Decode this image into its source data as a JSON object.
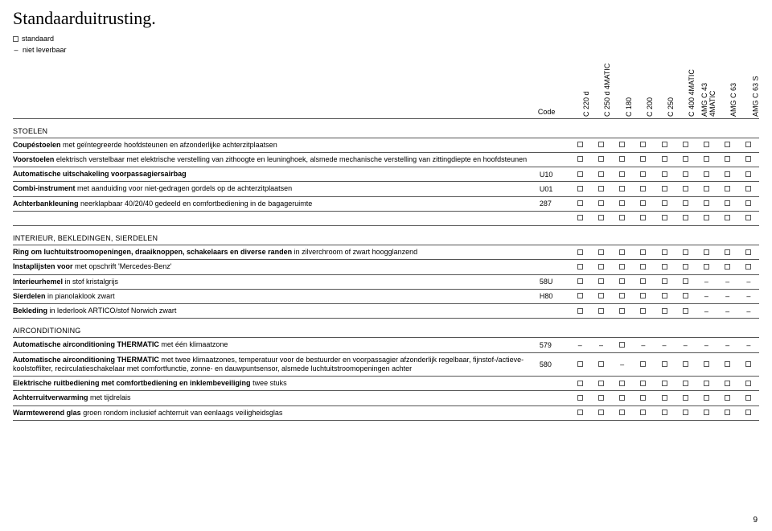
{
  "title": "Standaarduitrusting.",
  "legend": {
    "standard": "standaard",
    "notAvailable": "niet leverbaar"
  },
  "codeLabel": "Code",
  "columns": [
    "C 220 d",
    "C 250 d 4MATIC",
    "C 180",
    "C 200",
    "C 250",
    "C 400 4MATIC",
    "AMG C 43 4MATIC",
    "AMG C 63",
    "AMG C 63 S"
  ],
  "colWidths": {
    "desc": 598,
    "code": 36,
    "mark": 24
  },
  "marks": {
    "s": "□",
    "d": "–"
  },
  "pageNumber": "9",
  "sections": [
    {
      "heading": "STOELEN",
      "rows": [
        {
          "boldText": "Coupéstoelen",
          "regText": " met geïntegreerde hoofdsteunen en afzonderlijke achterzitplaatsen",
          "code": "",
          "marks": [
            "s",
            "s",
            "s",
            "s",
            "s",
            "s",
            "s",
            "s",
            "s"
          ]
        },
        {
          "boldText": "Voorstoelen",
          "regText": " elektrisch verstelbaar met elektrische verstelling van zithoogte en leuninghoek, alsmede mechanische verstelling van zittingdiepte en hoofdsteunen",
          "code": "",
          "marks": [
            "s",
            "s",
            "s",
            "s",
            "s",
            "s",
            "s",
            "s",
            "s"
          ]
        },
        {
          "boldText": "Automatische uitschakeling voorpassagiersairbag",
          "regText": "",
          "code": "U10",
          "marks": [
            "s",
            "s",
            "s",
            "s",
            "s",
            "s",
            "s",
            "s",
            "s"
          ]
        },
        {
          "boldText": "Combi-instrument",
          "regText": " met aanduiding voor niet-gedragen gordels op de achterzitplaatsen",
          "code": "U01",
          "marks": [
            "s",
            "s",
            "s",
            "s",
            "s",
            "s",
            "s",
            "s",
            "s"
          ]
        },
        {
          "boldText": "Achterbankleuning",
          "regText": " neerklapbaar 40/20/40 gedeeld en comfortbediening in de bagageruimte",
          "code": "287",
          "marks": [
            "s",
            "s",
            "s",
            "s",
            "s",
            "s",
            "s",
            "s",
            "s"
          ]
        },
        {
          "boldText": "",
          "regText": "",
          "code": "",
          "marks": [
            "s",
            "s",
            "s",
            "s",
            "s",
            "s",
            "s",
            "s",
            "s"
          ]
        }
      ]
    },
    {
      "heading": "INTERIEUR, BEKLEDINGEN, SIERDELEN",
      "rows": [
        {
          "boldText": "Ring om luchtuitstroomopeningen, draaiknoppen, schakelaars en diverse randen",
          "regText": " in zilverchroom of zwart hoogglanzend",
          "code": "",
          "marks": [
            "s",
            "s",
            "s",
            "s",
            "s",
            "s",
            "s",
            "s",
            "s"
          ]
        },
        {
          "boldText": "Instaplijsten voor",
          "regText": " met opschrift 'Mercedes-Benz'",
          "code": "",
          "marks": [
            "s",
            "s",
            "s",
            "s",
            "s",
            "s",
            "s",
            "s",
            "s"
          ]
        },
        {
          "boldText": "Interieurhemel",
          "regText": " in stof kristalgrijs",
          "code": "58U",
          "marks": [
            "s",
            "s",
            "s",
            "s",
            "s",
            "s",
            "d",
            "d",
            "d"
          ]
        },
        {
          "boldText": "Sierdelen",
          "regText": " in pianolaklook zwart",
          "code": "H80",
          "marks": [
            "s",
            "s",
            "s",
            "s",
            "s",
            "s",
            "d",
            "d",
            "d"
          ]
        },
        {
          "boldText": "Bekleding",
          "regText": " in lederlook ARTICO/stof Norwich zwart",
          "code": "",
          "marks": [
            "s",
            "s",
            "s",
            "s",
            "s",
            "s",
            "d",
            "d",
            "d"
          ]
        }
      ]
    },
    {
      "heading": "AIRCONDITIONING",
      "rows": [
        {
          "boldText": "Automatische airconditioning THERMATIC",
          "regText": " met één klimaatzone",
          "code": "579",
          "marks": [
            "d",
            "d",
            "s",
            "d",
            "d",
            "d",
            "d",
            "d",
            "d"
          ]
        },
        {
          "boldText": "Automatische airconditioning THERMATIC",
          "regText": " met twee klimaatzones, temperatuur voor de bestuurder en voorpassagier afzonderlijk regelbaar, fijnstof-/actieve-koolstoffilter, recirculatieschakelaar met comfortfunctie, zonne- en dauwpuntsensor, alsmede luchtuitstroomopeningen achter",
          "code": "580",
          "marks": [
            "s",
            "s",
            "d",
            "s",
            "s",
            "s",
            "s",
            "s",
            "s"
          ]
        },
        {
          "boldText": "Elektrische ruitbediening met comfortbediening en inklembeveiliging",
          "regText": " twee stuks",
          "code": "",
          "marks": [
            "s",
            "s",
            "s",
            "s",
            "s",
            "s",
            "s",
            "s",
            "s"
          ]
        },
        {
          "boldText": "Achterruitverwarming",
          "regText": " met tijdrelais",
          "code": "",
          "marks": [
            "s",
            "s",
            "s",
            "s",
            "s",
            "s",
            "s",
            "s",
            "s"
          ]
        },
        {
          "boldText": "Warmtewerend glas",
          "regText": " groen rondom inclusief achterruit van eenlaags veiligheidsglas",
          "code": "",
          "marks": [
            "s",
            "s",
            "s",
            "s",
            "s",
            "s",
            "s",
            "s",
            "s"
          ]
        }
      ]
    }
  ]
}
